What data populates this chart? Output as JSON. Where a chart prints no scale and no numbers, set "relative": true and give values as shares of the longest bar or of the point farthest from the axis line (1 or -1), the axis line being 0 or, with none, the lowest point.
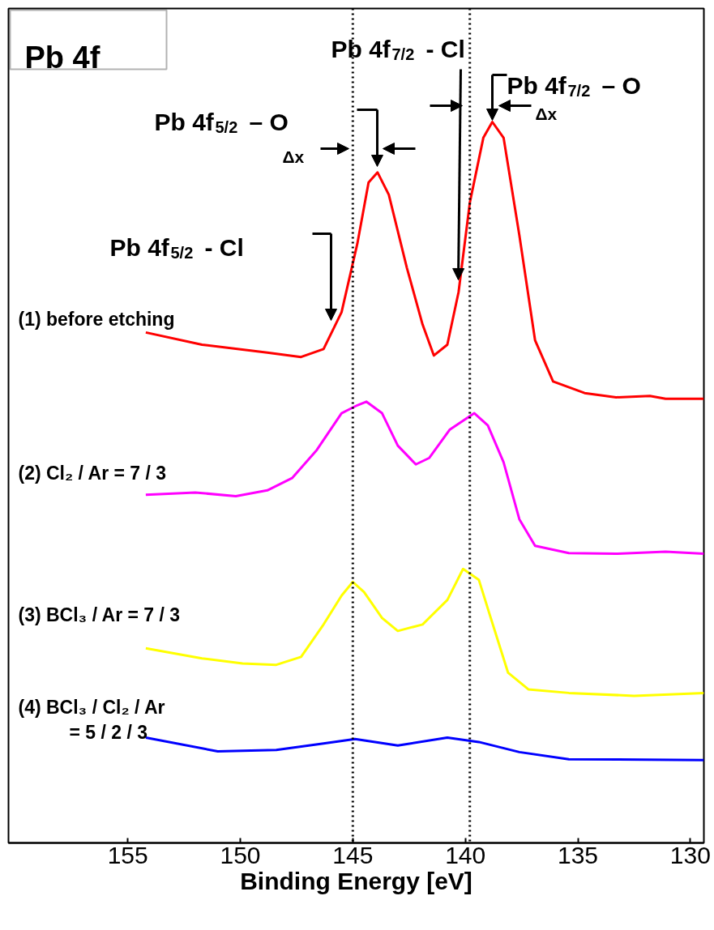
{
  "chart_data": {
    "type": "line",
    "title": "Pb 4f",
    "xlabel": "Binding Energy [eV]",
    "relative": true,
    "xlim": [
      160.3,
      129.4
    ],
    "xticks": [
      155,
      150,
      145,
      140,
      135,
      130
    ],
    "grid": false,
    "line_style": "solid",
    "marker": "none",
    "ref_lines": [
      {
        "axis": "x",
        "value": 145.0,
        "color": "#000000",
        "line_style": "dotted"
      },
      {
        "axis": "x",
        "value": 139.8,
        "color": "#000000",
        "line_style": "dotted"
      }
    ],
    "annotations": [
      "Pb 4f$_{5/2}$ - Cl",
      "Pb 4f$_{5/2}$ – O",
      "Pb 4f$_{7/2}$ - Cl",
      "Pb 4f$_{7/2}$ – O",
      "Δx",
      "Δx"
    ],
    "series": [
      {
        "name": "(1) before etching",
        "color": "#ff0000",
        "x": [
          154.2,
          151.7,
          148.8,
          147.3,
          146.3,
          145.5,
          144.8,
          144.3,
          143.9,
          143.4,
          142.6,
          141.9,
          141.4,
          140.8,
          140.3,
          139.8,
          139.2,
          138.8,
          138.3,
          137.6,
          136.9,
          136.1,
          134.7,
          133.3,
          131.8,
          131.1,
          129.4
        ],
        "values": [
          0.708,
          0.691,
          0.68,
          0.674,
          0.685,
          0.736,
          0.831,
          0.916,
          0.93,
          0.899,
          0.798,
          0.719,
          0.676,
          0.691,
          0.764,
          0.888,
          0.978,
          1.0,
          0.978,
          0.843,
          0.697,
          0.64,
          0.624,
          0.618,
          0.62,
          0.616,
          0.616
        ]
      },
      {
        "name": "(2) Cl₂ / Ar = 7 / 3",
        "color": "#ff00ff",
        "x": [
          154.2,
          152.0,
          150.2,
          148.8,
          147.7,
          146.6,
          145.5,
          144.8,
          144.4,
          143.7,
          143.0,
          142.2,
          141.6,
          140.7,
          139.6,
          139.0,
          138.3,
          137.6,
          136.9,
          135.4,
          133.3,
          131.1,
          129.4
        ],
        "values": [
          0.483,
          0.486,
          0.481,
          0.489,
          0.506,
          0.545,
          0.596,
          0.607,
          0.612,
          0.596,
          0.551,
          0.525,
          0.534,
          0.573,
          0.596,
          0.579,
          0.528,
          0.449,
          0.412,
          0.402,
          0.401,
          0.404,
          0.401
        ]
      },
      {
        "name": "(3) BCl₃ / Ar = 7 / 3",
        "color": "#ffff00",
        "x": [
          154.2,
          151.7,
          149.9,
          148.4,
          147.3,
          146.3,
          145.5,
          145.0,
          144.5,
          143.7,
          143.0,
          141.9,
          140.8,
          140.1,
          139.4,
          138.9,
          138.1,
          137.2,
          135.4,
          132.5,
          129.4
        ],
        "values": [
          0.27,
          0.256,
          0.249,
          0.247,
          0.258,
          0.303,
          0.343,
          0.362,
          0.348,
          0.312,
          0.294,
          0.303,
          0.337,
          0.38,
          0.365,
          0.315,
          0.236,
          0.213,
          0.208,
          0.204,
          0.208
        ]
      },
      {
        "name": "(4) BCl₃ / Cl₂ / Ar\n= 5 / 2 / 3",
        "color": "#0000ff",
        "x": [
          154.2,
          151.0,
          148.4,
          146.3,
          144.9,
          143.0,
          140.8,
          139.4,
          137.6,
          135.4,
          129.4
        ],
        "values": [
          0.146,
          0.127,
          0.129,
          0.138,
          0.144,
          0.135,
          0.146,
          0.14,
          0.126,
          0.116,
          0.115
        ]
      }
    ]
  }
}
